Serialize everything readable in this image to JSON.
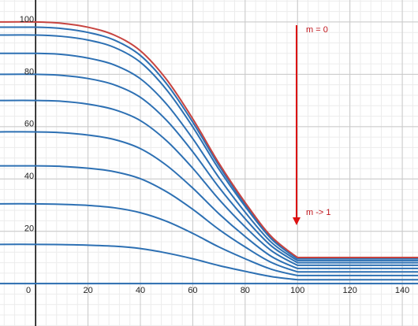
{
  "chart_data": {
    "type": "line",
    "annotations": [
      "m = 0",
      "m -> 1"
    ],
    "x": [
      -14,
      0,
      10,
      20,
      30,
      40,
      50,
      60,
      70,
      80,
      90,
      100,
      146
    ],
    "series": [
      {
        "color": "#c74440",
        "values": [
          100,
          100,
          99.5,
          98,
          95,
          89,
          78,
          63,
          46,
          31,
          18,
          10,
          10
        ]
      },
      {
        "color": "#2d70b3",
        "values": [
          98,
          98,
          97.5,
          96,
          93.1,
          87.2,
          76.4,
          61.7,
          45.1,
          30.4,
          17.6,
          9.8,
          9.8
        ]
      },
      {
        "color": "#2d70b3",
        "values": [
          95,
          95,
          94.5,
          93.1,
          90.3,
          84.6,
          74.1,
          59.9,
          43.7,
          29.5,
          17.1,
          9.5,
          9.5
        ]
      },
      {
        "color": "#2d70b3",
        "values": [
          88,
          88,
          87.6,
          86.2,
          83.6,
          78.3,
          68.6,
          55.4,
          40.5,
          27.3,
          15.8,
          8.8,
          8.8
        ]
      },
      {
        "color": "#2d70b3",
        "values": [
          80,
          80,
          79.6,
          78.4,
          76,
          71.2,
          62.4,
          50.4,
          36.8,
          24.8,
          14.4,
          8,
          8
        ]
      },
      {
        "color": "#2d70b3",
        "values": [
          70,
          70,
          69.7,
          68.6,
          66.5,
          62.3,
          54.6,
          44.1,
          32.2,
          21.7,
          12.6,
          7,
          7
        ]
      },
      {
        "color": "#2d70b3",
        "values": [
          58,
          58,
          57.7,
          56.8,
          55.1,
          51.6,
          45.2,
          36.5,
          26.7,
          18,
          10.4,
          5.8,
          5.8
        ]
      },
      {
        "color": "#2d70b3",
        "values": [
          45,
          45,
          44.8,
          44.1,
          42.8,
          40.1,
          35.1,
          28.4,
          20.7,
          14,
          8.1,
          4.5,
          4.5
        ]
      },
      {
        "color": "#2d70b3",
        "values": [
          30.5,
          30.5,
          30.3,
          29.9,
          29,
          27.1,
          23.8,
          19.2,
          14,
          9.5,
          5.5,
          3.1,
          3.1
        ]
      },
      {
        "color": "#2d70b3",
        "values": [
          15,
          15,
          14.9,
          14.7,
          14.3,
          13.4,
          11.7,
          9.5,
          6.9,
          4.7,
          2.7,
          1.5,
          1.5
        ]
      },
      {
        "color": "#2d70b3",
        "values": [
          0,
          0,
          0,
          0,
          0,
          0,
          0,
          0,
          0,
          0,
          0,
          0,
          0
        ]
      }
    ],
    "xlim": [
      -13.6,
      146
    ],
    "ylim": [
      -16.2,
      108.4
    ],
    "xticks": [
      0,
      20,
      40,
      60,
      80,
      100,
      120,
      140
    ],
    "yticks": [
      20,
      40,
      60,
      80,
      100
    ],
    "grid": true,
    "minor_grid_step": 4
  }
}
